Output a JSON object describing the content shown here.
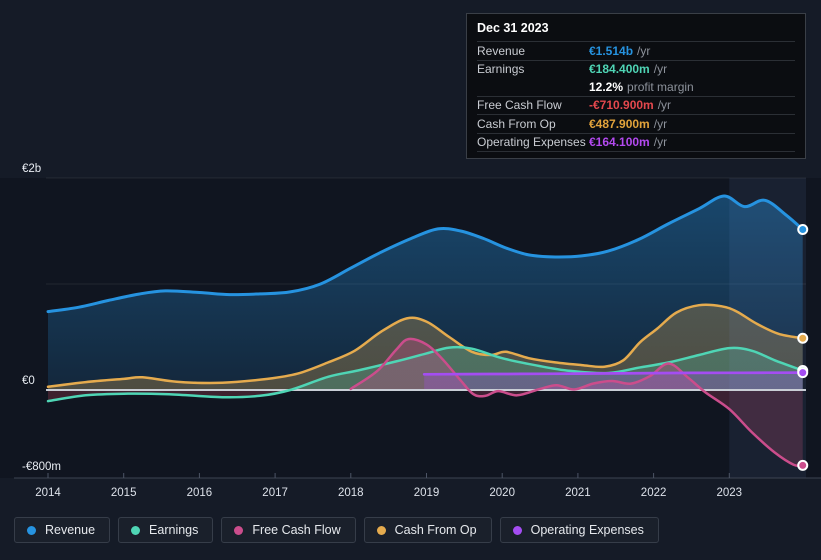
{
  "palette": {
    "revenue": "#2693e0",
    "earnings": "#4fd5b5",
    "free_cash_flow": "#cb4d8c",
    "cash_from_op": "#e5ab4e",
    "operating_expenses": "#a44df2",
    "negative_value_red": "#e5484d",
    "zero_line": "#c9ced6",
    "gridline": "rgba(255,255,255,0.08)",
    "axis_line": "#3d4452",
    "tick": "#4d5566",
    "axis_text": "#e8ecf2",
    "year_text": "#dde2ea",
    "background": "#151b27",
    "highlight_band": "rgba(128,168,230,0.085)"
  },
  "tooltip": {
    "date": "Dec 31 2023",
    "rows": [
      {
        "label": "Revenue",
        "value": "€1.514b",
        "suffix": "/yr",
        "color": "#2693e0"
      },
      {
        "label": "Earnings",
        "value": "€184.400m",
        "suffix": "/yr",
        "color": "#4fd5b5"
      },
      {
        "label": "Free Cash Flow",
        "value": "-€710.900m",
        "suffix": "/yr",
        "color": "#e5484d"
      },
      {
        "label": "Cash From Op",
        "value": "€487.900m",
        "suffix": "/yr",
        "color": "#e2a33b"
      },
      {
        "label": "Operating Expenses",
        "value": "€164.100m",
        "suffix": "/yr",
        "color": "#b44af0"
      }
    ],
    "profit_margin": {
      "value": "12.2%",
      "label": "profit margin"
    }
  },
  "legend": {
    "items": [
      {
        "label": "Revenue",
        "slug": "revenue",
        "color": "#2693e0"
      },
      {
        "label": "Earnings",
        "slug": "earnings",
        "color": "#4fd5b5"
      },
      {
        "label": "Free Cash Flow",
        "slug": "free-cash-flow",
        "color": "#cb4d8c"
      },
      {
        "label": "Cash From Op",
        "slug": "cash-from-op",
        "color": "#e5ab4e"
      },
      {
        "label": "Operating Expenses",
        "slug": "operating-expenses",
        "color": "#a44df2"
      }
    ]
  },
  "chart_data": {
    "type": "area",
    "unit": "EUR billions per year",
    "x_ticks": [
      2014,
      2015,
      2016,
      2017,
      2018,
      2019,
      2020,
      2021,
      2022,
      2023
    ],
    "x_range": [
      2014,
      2023.97
    ],
    "y_axis": {
      "labels": [
        {
          "text": "€2b",
          "value": 2
        },
        {
          "text": "€0",
          "value": 0
        },
        {
          "text": "-€800m",
          "value": -0.8
        }
      ],
      "gridline_values": [
        2,
        1
      ],
      "range": [
        -0.83,
        2.0
      ]
    },
    "highlight_band": {
      "from": 2023.0,
      "to": 2024.02
    },
    "legend_position": "bottom",
    "series": [
      {
        "name": "Revenue",
        "slug": "revenue",
        "color": "#2693e0",
        "line_width": 3,
        "points": [
          [
            2014.0,
            0.74
          ],
          [
            2014.4,
            0.78
          ],
          [
            2014.8,
            0.845
          ],
          [
            2015.2,
            0.905
          ],
          [
            2015.55,
            0.935
          ],
          [
            2016.0,
            0.92
          ],
          [
            2016.4,
            0.9
          ],
          [
            2016.8,
            0.907
          ],
          [
            2017.2,
            0.925
          ],
          [
            2017.6,
            1.0
          ],
          [
            2018.0,
            1.15
          ],
          [
            2018.4,
            1.3
          ],
          [
            2018.8,
            1.43
          ],
          [
            2019.15,
            1.52
          ],
          [
            2019.45,
            1.5
          ],
          [
            2019.75,
            1.43
          ],
          [
            2020.05,
            1.34
          ],
          [
            2020.35,
            1.275
          ],
          [
            2020.7,
            1.255
          ],
          [
            2021.05,
            1.265
          ],
          [
            2021.4,
            1.31
          ],
          [
            2021.8,
            1.42
          ],
          [
            2022.2,
            1.57
          ],
          [
            2022.6,
            1.71
          ],
          [
            2022.93,
            1.83
          ],
          [
            2023.2,
            1.73
          ],
          [
            2023.47,
            1.79
          ],
          [
            2023.75,
            1.65
          ],
          [
            2023.97,
            1.514
          ]
        ]
      },
      {
        "name": "Cash From Op",
        "slug": "cash-from-op",
        "color": "#e5ab4e",
        "line_width": 2.5,
        "points": [
          [
            2014.0,
            0.03
          ],
          [
            2014.5,
            0.075
          ],
          [
            2015.0,
            0.105
          ],
          [
            2015.25,
            0.12
          ],
          [
            2015.7,
            0.078
          ],
          [
            2016.3,
            0.068
          ],
          [
            2016.9,
            0.105
          ],
          [
            2017.3,
            0.155
          ],
          [
            2017.7,
            0.26
          ],
          [
            2018.05,
            0.37
          ],
          [
            2018.4,
            0.55
          ],
          [
            2018.74,
            0.675
          ],
          [
            2019.0,
            0.645
          ],
          [
            2019.3,
            0.5
          ],
          [
            2019.6,
            0.36
          ],
          [
            2019.85,
            0.33
          ],
          [
            2020.05,
            0.36
          ],
          [
            2020.35,
            0.3
          ],
          [
            2020.7,
            0.26
          ],
          [
            2021.05,
            0.235
          ],
          [
            2021.35,
            0.22
          ],
          [
            2021.6,
            0.28
          ],
          [
            2021.82,
            0.45
          ],
          [
            2022.05,
            0.58
          ],
          [
            2022.3,
            0.73
          ],
          [
            2022.6,
            0.8
          ],
          [
            2022.9,
            0.79
          ],
          [
            2023.1,
            0.74
          ],
          [
            2023.35,
            0.63
          ],
          [
            2023.65,
            0.53
          ],
          [
            2023.97,
            0.4879
          ]
        ]
      },
      {
        "name": "Earnings",
        "slug": "earnings",
        "color": "#4fd5b5",
        "line_width": 2.5,
        "points": [
          [
            2014.0,
            -0.105
          ],
          [
            2014.5,
            -0.05
          ],
          [
            2015.0,
            -0.035
          ],
          [
            2015.6,
            -0.04
          ],
          [
            2016.3,
            -0.068
          ],
          [
            2016.8,
            -0.055
          ],
          [
            2017.2,
            0.0
          ],
          [
            2017.7,
            0.125
          ],
          [
            2018.1,
            0.185
          ],
          [
            2018.6,
            0.27
          ],
          [
            2019.0,
            0.345
          ],
          [
            2019.3,
            0.4
          ],
          [
            2019.6,
            0.39
          ],
          [
            2020.0,
            0.3
          ],
          [
            2020.5,
            0.225
          ],
          [
            2020.9,
            0.18
          ],
          [
            2021.4,
            0.16
          ],
          [
            2021.8,
            0.21
          ],
          [
            2022.2,
            0.26
          ],
          [
            2022.6,
            0.33
          ],
          [
            2023.0,
            0.395
          ],
          [
            2023.3,
            0.37
          ],
          [
            2023.6,
            0.28
          ],
          [
            2023.97,
            0.1844
          ]
        ]
      },
      {
        "name": "Free Cash Flow",
        "slug": "free-cash-flow",
        "color": "#cb4d8c",
        "line_width": 2.5,
        "points": [
          [
            2018.0,
            0.01
          ],
          [
            2018.35,
            0.18
          ],
          [
            2018.6,
            0.38
          ],
          [
            2018.76,
            0.48
          ],
          [
            2019.0,
            0.43
          ],
          [
            2019.2,
            0.3
          ],
          [
            2019.44,
            0.1
          ],
          [
            2019.62,
            -0.04
          ],
          [
            2019.78,
            -0.055
          ],
          [
            2019.95,
            -0.01
          ],
          [
            2020.2,
            -0.05
          ],
          [
            2020.5,
            0.01
          ],
          [
            2020.72,
            0.045
          ],
          [
            2020.95,
            0.005
          ],
          [
            2021.2,
            0.06
          ],
          [
            2021.45,
            0.085
          ],
          [
            2021.7,
            0.06
          ],
          [
            2021.95,
            0.13
          ],
          [
            2022.2,
            0.25
          ],
          [
            2022.45,
            0.12
          ],
          [
            2022.68,
            -0.02
          ],
          [
            2023.0,
            -0.18
          ],
          [
            2023.3,
            -0.4
          ],
          [
            2023.6,
            -0.59
          ],
          [
            2023.85,
            -0.705
          ],
          [
            2023.97,
            -0.7109
          ]
        ]
      },
      {
        "name": "Operating Expenses",
        "slug": "operating-expenses",
        "color": "#a44df2",
        "line_width": 2.7,
        "points": [
          [
            2018.97,
            0.148
          ],
          [
            2019.5,
            0.15
          ],
          [
            2020.0,
            0.151
          ],
          [
            2020.5,
            0.153
          ],
          [
            2021.0,
            0.155
          ],
          [
            2021.5,
            0.157
          ],
          [
            2022.0,
            0.159
          ],
          [
            2022.5,
            0.161
          ],
          [
            2023.0,
            0.162
          ],
          [
            2023.5,
            0.163
          ],
          [
            2023.97,
            0.1641
          ]
        ]
      }
    ],
    "end_values_text": {
      "revenue": "€1.514b/yr",
      "earnings": "€184.400m/yr",
      "free_cash_flow": "-€710.900m/yr",
      "cash_from_op": "€487.900m/yr",
      "operating_expenses": "€164.100m/yr"
    }
  }
}
